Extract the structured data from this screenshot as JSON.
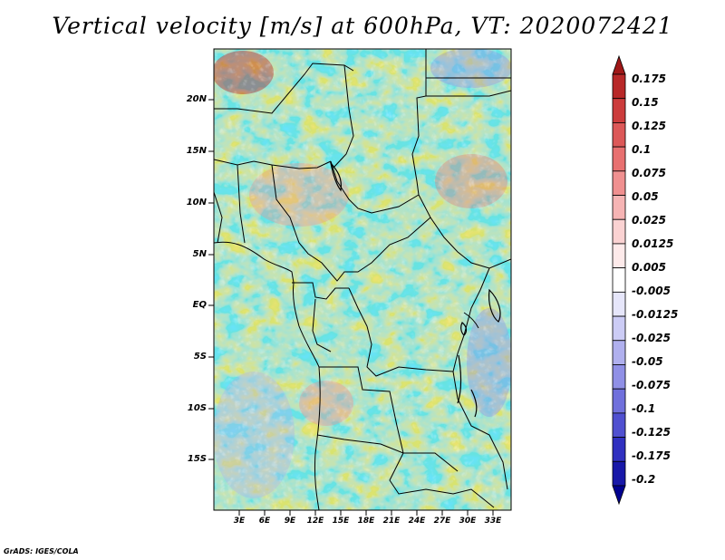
{
  "title": "Vertical velocity [m/s] at 600hPa, VT: 2020072421",
  "footer": "GrADS: IGES/COLA",
  "lat_labels": [
    "20N",
    "15N",
    "10N",
    "5N",
    "EQ",
    "5S",
    "10S",
    "15S"
  ],
  "lon_labels": [
    "3E",
    "6E",
    "9E",
    "12E",
    "15E",
    "18E",
    "21E",
    "24E",
    "27E",
    "30E",
    "33E"
  ],
  "colorbar": {
    "labels": [
      "0.175",
      "0.15",
      "0.125",
      "0.1",
      "0.075",
      "0.05",
      "0.025",
      "0.0125",
      "0.005",
      "-0.005",
      "-0.0125",
      "-0.025",
      "-0.05",
      "-0.075",
      "-0.1",
      "-0.125",
      "-0.175",
      "-0.2"
    ],
    "colors": [
      "#a01818",
      "#b82828",
      "#cc3c3c",
      "#dc5858",
      "#e87070",
      "#f09090",
      "#f6b4b4",
      "#fad2d2",
      "#fdeaea",
      "#ffffff",
      "#e6e6fa",
      "#ccccf5",
      "#b0b0ee",
      "#9090e6",
      "#7070dc",
      "#5050d0",
      "#3030c0",
      "#1818a8",
      "#000090"
    ]
  },
  "chart_data": {
    "type": "heatmap",
    "variable": "Vertical velocity",
    "units": "m/s",
    "level": "600hPa",
    "valid_time": "2020072421",
    "lat_range": [
      -20,
      24.5
    ],
    "lon_range": [
      0.5,
      35.5
    ],
    "lat_ticks": [
      -15,
      -10,
      -5,
      0,
      5,
      10,
      15,
      20
    ],
    "lon_ticks": [
      3,
      6,
      9,
      12,
      15,
      18,
      21,
      24,
      27,
      30,
      33
    ],
    "levels": [
      -0.2,
      -0.175,
      -0.125,
      -0.1,
      -0.075,
      -0.05,
      -0.025,
      -0.0125,
      -0.005,
      0.005,
      0.0125,
      0.025,
      0.05,
      0.075,
      0.1,
      0.125,
      0.15,
      0.175
    ]
  }
}
